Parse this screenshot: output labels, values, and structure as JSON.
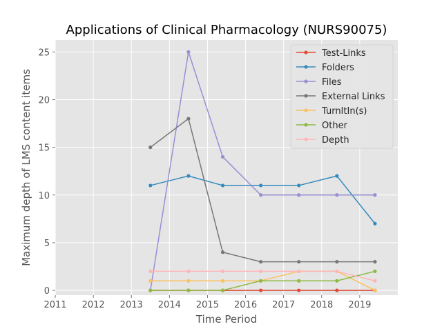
{
  "chart_data": {
    "type": "line",
    "title": "Applications of Clinical Pharmacology (NURS90075)",
    "xlabel": "Time Period",
    "ylabel": "Maximum depth of LMS content items",
    "xlim": [
      2011,
      2020
    ],
    "ylim": [
      -0.5,
      26.25
    ],
    "x_ticks": [
      "2011",
      "2012",
      "2013",
      "2014",
      "2015",
      "2016",
      "2017",
      "2018",
      "2019"
    ],
    "y_ticks": [
      "0",
      "5",
      "10",
      "15",
      "20",
      "25"
    ],
    "grid": true,
    "legend_position": "top-right",
    "x": [
      2013.5,
      2014.5,
      2015.4,
      2016.4,
      2017.4,
      2018.4,
      2019.4
    ],
    "series": [
      {
        "name": "Test-Links",
        "color": "#E24A33",
        "values": [
          0,
          0,
          0,
          0,
          0,
          0,
          0
        ]
      },
      {
        "name": "Folders",
        "color": "#348ABD",
        "values": [
          11,
          12,
          11,
          11,
          11,
          12,
          7
        ]
      },
      {
        "name": "Files",
        "color": "#988ED5",
        "values": [
          0,
          25,
          14,
          10,
          10,
          10,
          10
        ]
      },
      {
        "name": "External Links",
        "color": "#777777",
        "values": [
          15,
          18,
          4,
          3,
          3,
          3,
          3
        ]
      },
      {
        "name": "TurnItIn(s)",
        "color": "#FBC15E",
        "values": [
          1,
          1,
          1,
          1,
          2,
          2,
          0
        ]
      },
      {
        "name": "Other",
        "color": "#8EBA42",
        "values": [
          0,
          0,
          0,
          1,
          1,
          1,
          2
        ]
      },
      {
        "name": "Depth",
        "color": "#FFB5B8",
        "values": [
          2,
          2,
          2,
          2,
          2,
          2,
          1
        ]
      }
    ]
  }
}
